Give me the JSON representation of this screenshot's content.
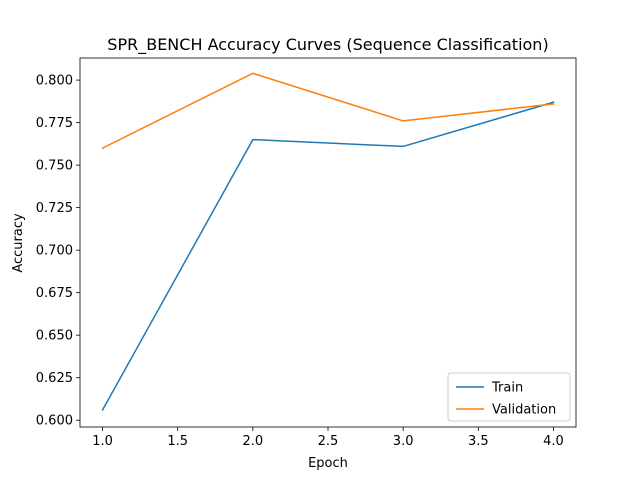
{
  "chart_data": {
    "type": "line",
    "title": "SPR_BENCH Accuracy Curves (Sequence Classification)",
    "xlabel": "Epoch",
    "ylabel": "Accuracy",
    "xlim": [
      0.85,
      4.15
    ],
    "ylim": [
      0.596,
      0.813
    ],
    "xticks": [
      1.0,
      1.5,
      2.0,
      2.5,
      3.0,
      3.5,
      4.0
    ],
    "xtick_labels": [
      "1.0",
      "1.5",
      "2.0",
      "2.5",
      "3.0",
      "3.5",
      "4.0"
    ],
    "yticks": [
      0.6,
      0.625,
      0.65,
      0.675,
      0.7,
      0.725,
      0.75,
      0.775,
      0.8
    ],
    "ytick_labels": [
      "0.600",
      "0.625",
      "0.650",
      "0.675",
      "0.700",
      "0.725",
      "0.750",
      "0.775",
      "0.800"
    ],
    "grid": false,
    "legend_position": "lower-right",
    "x": [
      1,
      2,
      3,
      4
    ],
    "series": [
      {
        "name": "Train",
        "color": "#1f77b4",
        "values": [
          0.606,
          0.765,
          0.761,
          0.787
        ]
      },
      {
        "name": "Validation",
        "color": "#ff7f0e",
        "values": [
          0.76,
          0.804,
          0.776,
          0.786
        ]
      }
    ]
  }
}
